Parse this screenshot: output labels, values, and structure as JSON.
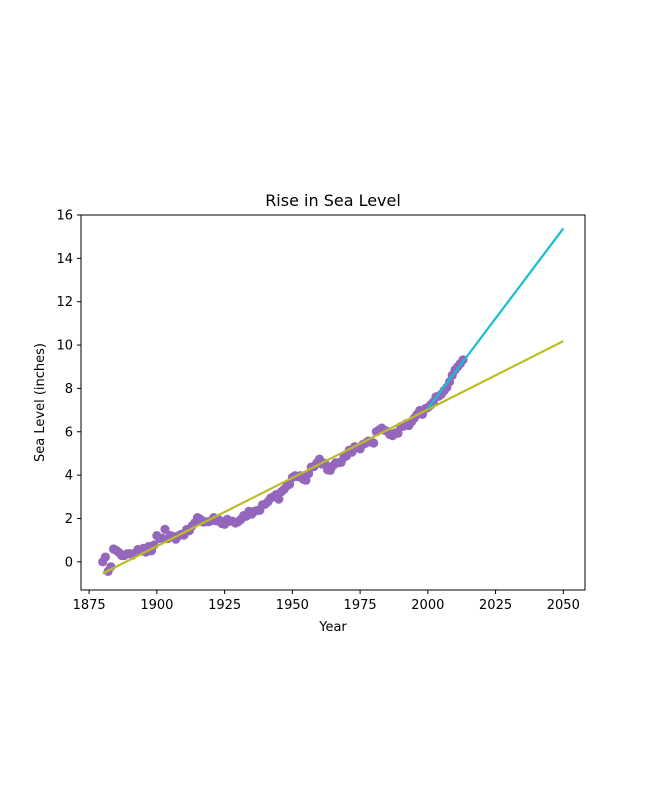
{
  "chart_data": {
    "type": "scatter",
    "title": "Rise in Sea Level",
    "xlabel": "Year",
    "ylabel": "Sea Level (inches)",
    "xlim": [
      1872,
      2058
    ],
    "ylim": [
      -1.3,
      16
    ],
    "xticks": [
      1875,
      1900,
      1925,
      1950,
      1975,
      2000,
      2025,
      2050
    ],
    "yticks": [
      0,
      2,
      4,
      6,
      8,
      10,
      12,
      14,
      16
    ],
    "grid": false,
    "scatter": {
      "name": "",
      "color": "#9467bd",
      "points": [
        [
          1880,
          0.0
        ],
        [
          1881,
          0.22
        ],
        [
          1882,
          -0.44
        ],
        [
          1883,
          -0.23
        ],
        [
          1884,
          0.59
        ],
        [
          1885,
          0.53
        ],
        [
          1886,
          0.43
        ],
        [
          1887,
          0.29
        ],
        [
          1888,
          0.29
        ],
        [
          1889,
          0.37
        ],
        [
          1890,
          0.38
        ],
        [
          1891,
          0.31
        ],
        [
          1892,
          0.41
        ],
        [
          1893,
          0.57
        ],
        [
          1894,
          0.49
        ],
        [
          1895,
          0.62
        ],
        [
          1896,
          0.45
        ],
        [
          1897,
          0.71
        ],
        [
          1898,
          0.51
        ],
        [
          1899,
          0.78
        ],
        [
          1900,
          1.21
        ],
        [
          1901,
          1.08
        ],
        [
          1902,
          1.09
        ],
        [
          1903,
          1.5
        ],
        [
          1904,
          1.07
        ],
        [
          1905,
          1.21
        ],
        [
          1906,
          1.17
        ],
        [
          1907,
          1.04
        ],
        [
          1908,
          1.2
        ],
        [
          1909,
          1.27
        ],
        [
          1910,
          1.23
        ],
        [
          1911,
          1.49
        ],
        [
          1912,
          1.44
        ],
        [
          1913,
          1.66
        ],
        [
          1914,
          1.8
        ],
        [
          1915,
          2.04
        ],
        [
          1916,
          1.97
        ],
        [
          1917,
          1.84
        ],
        [
          1918,
          1.85
        ],
        [
          1919,
          1.85
        ],
        [
          1920,
          1.89
        ],
        [
          1921,
          2.04
        ],
        [
          1922,
          1.89
        ],
        [
          1923,
          1.93
        ],
        [
          1924,
          1.77
        ],
        [
          1925,
          1.73
        ],
        [
          1926,
          1.96
        ],
        [
          1927,
          1.87
        ],
        [
          1928,
          1.87
        ],
        [
          1929,
          1.79
        ],
        [
          1930,
          1.85
        ],
        [
          1931,
          1.95
        ],
        [
          1932,
          2.13
        ],
        [
          1933,
          2.1
        ],
        [
          1934,
          2.33
        ],
        [
          1935,
          2.2
        ],
        [
          1936,
          2.33
        ],
        [
          1937,
          2.37
        ],
        [
          1938,
          2.38
        ],
        [
          1939,
          2.63
        ],
        [
          1940,
          2.66
        ],
        [
          1941,
          2.77
        ],
        [
          1942,
          2.94
        ],
        [
          1943,
          3.0
        ],
        [
          1944,
          3.1
        ],
        [
          1945,
          2.89
        ],
        [
          1946,
          3.24
        ],
        [
          1947,
          3.35
        ],
        [
          1948,
          3.51
        ],
        [
          1949,
          3.58
        ],
        [
          1950,
          3.89
        ],
        [
          1951,
          3.97
        ],
        [
          1952,
          3.93
        ],
        [
          1953,
          3.97
        ],
        [
          1954,
          3.81
        ],
        [
          1955,
          3.76
        ],
        [
          1956,
          4.07
        ],
        [
          1957,
          4.37
        ],
        [
          1958,
          4.4
        ],
        [
          1959,
          4.56
        ],
        [
          1960,
          4.74
        ],
        [
          1961,
          4.51
        ],
        [
          1962,
          4.54
        ],
        [
          1963,
          4.24
        ],
        [
          1964,
          4.22
        ],
        [
          1965,
          4.43
        ],
        [
          1966,
          4.57
        ],
        [
          1967,
          4.57
        ],
        [
          1968,
          4.59
        ],
        [
          1969,
          4.81
        ],
        [
          1970,
          4.89
        ],
        [
          1971,
          5.15
        ],
        [
          1972,
          5.06
        ],
        [
          1973,
          5.31
        ],
        [
          1974,
          5.26
        ],
        [
          1975,
          5.21
        ],
        [
          1976,
          5.41
        ],
        [
          1977,
          5.47
        ],
        [
          1978,
          5.57
        ],
        [
          1979,
          5.53
        ],
        [
          1980,
          5.48
        ],
        [
          1981,
          6.0
        ],
        [
          1982,
          6.08
        ],
        [
          1983,
          6.17
        ],
        [
          1984,
          6.07
        ],
        [
          1985,
          6.02
        ],
        [
          1986,
          5.87
        ],
        [
          1987,
          5.82
        ],
        [
          1988,
          5.95
        ],
        [
          1989,
          5.93
        ],
        [
          1990,
          6.24
        ],
        [
          1991,
          6.26
        ],
        [
          1992,
          6.37
        ],
        [
          1993,
          6.29
        ],
        [
          1994,
          6.47
        ],
        [
          1995,
          6.63
        ],
        [
          1996,
          6.8
        ],
        [
          1997,
          6.98
        ],
        [
          1998,
          6.8
        ],
        [
          1999,
          7.06
        ],
        [
          2000,
          7.12
        ],
        [
          2001,
          7.23
        ],
        [
          2002,
          7.37
        ],
        [
          2003,
          7.61
        ],
        [
          2004,
          7.64
        ],
        [
          2005,
          7.73
        ],
        [
          2006,
          7.9
        ],
        [
          2007,
          8.05
        ],
        [
          2008,
          8.3
        ],
        [
          2009,
          8.6
        ],
        [
          2010,
          8.85
        ],
        [
          2011,
          9.0
        ],
        [
          2012,
          9.15
        ],
        [
          2013,
          9.32
        ]
      ]
    },
    "lines": [
      {
        "name": "",
        "color": "#bcbd22",
        "x": [
          1880,
          2050
        ],
        "y": [
          -0.54,
          10.18
        ]
      },
      {
        "name": "",
        "color": "#17becf",
        "x": [
          2000,
          2050
        ],
        "y": [
          7.08,
          15.38
        ]
      }
    ]
  }
}
